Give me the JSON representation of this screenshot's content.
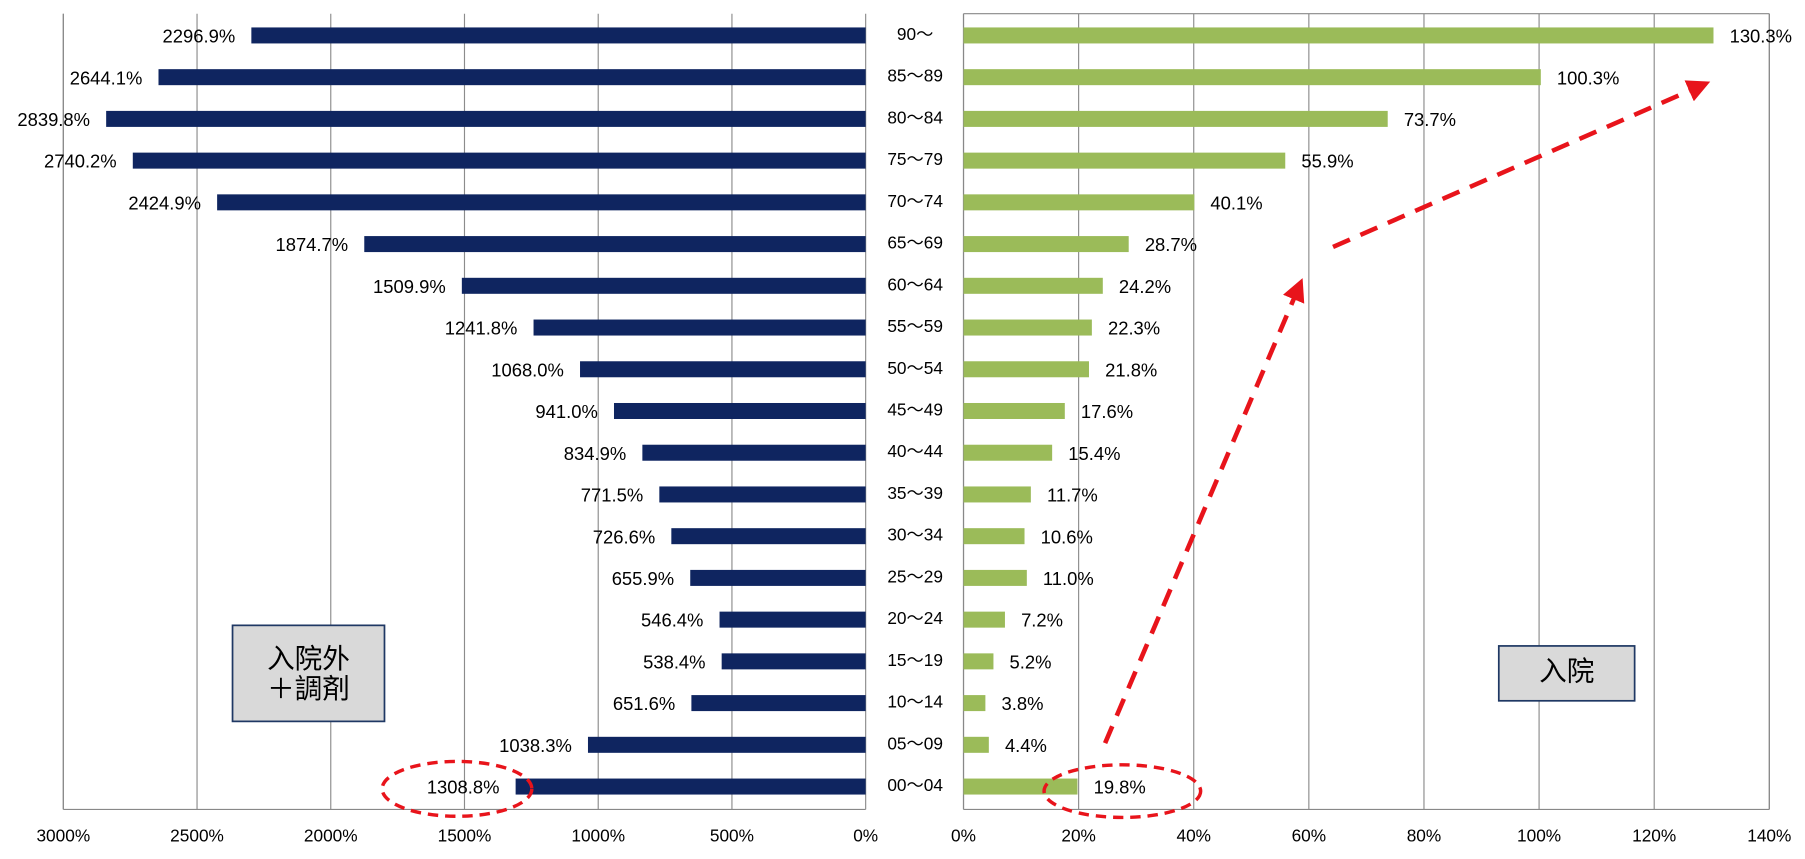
{
  "chart_data": [
    {
      "type": "bar",
      "orientation": "horizontal",
      "reversed": true,
      "color": "#0f2560",
      "categories": [
        "90～",
        "85～89",
        "80～84",
        "75～79",
        "70～74",
        "65～69",
        "60～64",
        "55～59",
        "50～54",
        "45～49",
        "40～44",
        "35～39",
        "30～34",
        "25～29",
        "20～24",
        "15～19",
        "10～14",
        "05～09",
        "00～04"
      ],
      "values": [
        2296.9,
        2644.1,
        2839.8,
        2740.2,
        2424.9,
        1874.7,
        1509.9,
        1241.8,
        1068.0,
        941.0,
        834.9,
        771.5,
        726.6,
        655.9,
        546.4,
        538.4,
        651.6,
        1038.3,
        1308.8
      ],
      "value_labels": [
        "2296.9%",
        "2644.1%",
        "2839.8%",
        "2740.2%",
        "2424.9%",
        "1874.7%",
        "1509.9%",
        "1241.8%",
        "1068.0%",
        "941.0%",
        "834.9%",
        "771.5%",
        "726.6%",
        "655.9%",
        "546.4%",
        "538.4%",
        "651.6%",
        "1038.3%",
        "1308.8%"
      ],
      "xlim": [
        0,
        3000
      ],
      "xticks": [
        {
          "value": 0,
          "label": "0%"
        },
        {
          "value": 500,
          "label": "500%"
        },
        {
          "value": 1000,
          "label": "1000%"
        },
        {
          "value": 1500,
          "label": "1500%"
        },
        {
          "value": 2000,
          "label": "2000%"
        },
        {
          "value": 2500,
          "label": "2500%"
        },
        {
          "value": 3000,
          "label": "3000%"
        }
      ],
      "grid": true,
      "annotation": [
        "入院外",
        "＋調剤"
      ]
    },
    {
      "type": "bar",
      "orientation": "horizontal",
      "reversed": false,
      "color": "#9bbb59",
      "values": [
        130.3,
        100.3,
        73.7,
        55.9,
        40.1,
        28.7,
        24.2,
        22.3,
        21.8,
        17.6,
        15.4,
        11.7,
        10.6,
        11.0,
        7.2,
        5.2,
        3.8,
        4.4,
        19.8
      ],
      "value_labels": [
        "130.3%",
        "100.3%",
        "73.7%",
        "55.9%",
        "40.1%",
        "28.7%",
        "24.2%",
        "22.3%",
        "21.8%",
        "17.6%",
        "15.4%",
        "11.7%",
        "10.6%",
        "11.0%",
        "7.2%",
        "5.2%",
        "3.8%",
        "4.4%",
        "19.8%"
      ],
      "xlim": [
        0,
        140
      ],
      "xticks": [
        {
          "value": 0,
          "label": "0%"
        },
        {
          "value": 20,
          "label": "20%"
        },
        {
          "value": 40,
          "label": "40%"
        },
        {
          "value": 60,
          "label": "60%"
        },
        {
          "value": 80,
          "label": "80%"
        },
        {
          "value": 100,
          "label": "100%"
        },
        {
          "value": 120,
          "label": "120%"
        },
        {
          "value": 140,
          "label": "140%"
        }
      ],
      "grid": true,
      "annotation": [
        "入院"
      ]
    }
  ]
}
